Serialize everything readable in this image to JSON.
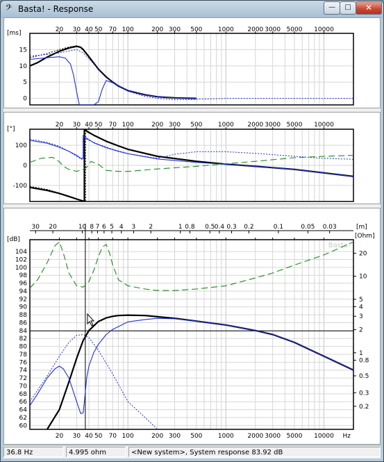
{
  "window": {
    "title": "Basta! - Response",
    "app_icon": "bass-clef-icon",
    "min_glyph": "—",
    "max_glyph": "□",
    "close_glyph": "✕"
  },
  "status": {
    "frequency": "36.8 Hz",
    "impedance": "4.995 ohm",
    "message": "<New system>, System response 83.92 dB"
  },
  "colors": {
    "primary": "#000000",
    "blue": "#1f2fd0",
    "green": "#1a8a1a",
    "grid": "#d6d6d6"
  },
  "freq_ticks": [
    "20",
    "30",
    "40",
    "50",
    "70",
    "100",
    "200",
    "300",
    "500",
    "1000",
    "2000",
    "3000",
    "5000",
    "10000"
  ],
  "chart_data": [
    {
      "type": "line",
      "panel": "group delay",
      "ylabel": "[ms]",
      "x_scale": "log",
      "xlim": [
        10,
        20000
      ],
      "ylim": [
        -2,
        20
      ],
      "yticks": [
        "15",
        "10",
        "5",
        "0"
      ],
      "series": [
        {
          "style": "solid-black",
          "x": [
            10,
            12,
            15,
            20,
            25,
            30,
            33,
            35,
            38,
            42,
            50,
            60,
            70,
            80,
            100,
            150,
            200,
            300,
            500
          ],
          "y": [
            10,
            11,
            12.7,
            14.5,
            15.5,
            16,
            15.7,
            15,
            13.7,
            12,
            9,
            6.6,
            5,
            3.8,
            2.4,
            1.1,
            0.5,
            0.15,
            0
          ]
        },
        {
          "style": "dotted-black",
          "x": [
            10,
            15,
            20,
            25,
            30,
            33,
            35,
            38,
            42,
            50,
            60,
            70,
            80,
            100,
            150,
            200,
            300,
            500
          ],
          "y": [
            12.5,
            13.8,
            15,
            15.8,
            16.2,
            15.8,
            15.2,
            13.8,
            12,
            9,
            6.6,
            5,
            3.8,
            2.4,
            1.1,
            0.5,
            0.15,
            0
          ]
        },
        {
          "style": "solid-blue",
          "x": [
            10,
            15,
            20,
            23,
            26,
            28,
            30,
            32,
            34,
            35,
            40,
            45,
            50,
            55,
            60,
            70,
            80,
            100,
            150,
            200,
            300,
            500
          ],
          "y": [
            12,
            12.5,
            12.8,
            12.4,
            10.5,
            7,
            2,
            -2,
            -2,
            -2,
            -2,
            -2,
            -1,
            3,
            5.5,
            4.8,
            3.9,
            2.5,
            1.1,
            0.5,
            0.15,
            0
          ]
        },
        {
          "style": "dotted-blue",
          "x": [
            10,
            15,
            20,
            25,
            30,
            35,
            40,
            50,
            70,
            100,
            150,
            200,
            300,
            500,
            1000,
            20000
          ],
          "y": [
            13,
            13.5,
            14,
            14.6,
            15,
            14,
            12.2,
            9,
            5,
            2.2,
            0.6,
            0,
            -0.4,
            -0.3,
            0,
            0
          ]
        }
      ]
    },
    {
      "type": "line",
      "panel": "phase",
      "ylabel": "[°]",
      "x_scale": "log",
      "xlim": [
        10,
        20000
      ],
      "ylim": [
        -180,
        180
      ],
      "yticks": [
        "100",
        "0",
        "-100"
      ],
      "series": [
        {
          "style": "solid-black",
          "x": [
            10,
            15,
            20,
            25,
            30,
            35,
            36,
            36.01,
            38,
            45,
            60,
            80,
            100,
            200,
            500,
            1000,
            2000,
            5000,
            20000
          ],
          "y": [
            -110,
            -125,
            -140,
            -155,
            -168,
            -178,
            -180,
            180,
            170,
            150,
            120,
            97,
            80,
            45,
            20,
            6,
            -5,
            -20,
            -55
          ]
        },
        {
          "style": "dotted-black",
          "x": [
            10,
            15,
            20,
            25,
            30,
            35,
            37,
            37.01,
            40,
            45,
            60,
            80,
            100,
            200,
            500,
            1000,
            2000,
            5000,
            20000
          ],
          "y": [
            -105,
            -120,
            -138,
            -153,
            -167,
            -177,
            -180,
            180,
            167,
            150,
            120,
            97,
            80,
            45,
            20,
            6,
            -5,
            -20,
            -55
          ]
        },
        {
          "style": "solid-blue",
          "x": [
            10,
            15,
            20,
            25,
            30,
            33,
            35,
            35.01,
            38,
            45,
            60,
            80,
            100,
            200,
            500,
            1000,
            2000,
            5000,
            20000
          ],
          "y": [
            125,
            110,
            90,
            70,
            50,
            35,
            35,
            150,
            135,
            112,
            88,
            70,
            58,
            32,
            15,
            5,
            -5,
            -20,
            -55
          ]
        },
        {
          "style": "dotted-blue",
          "x": [
            10,
            15,
            20,
            25,
            30,
            34,
            35,
            35.01,
            40,
            50,
            70,
            100,
            200,
            300,
            500,
            1000,
            2000,
            5000,
            10000,
            20000
          ],
          "y": [
            130,
            115,
            95,
            70,
            45,
            30,
            30,
            140,
            125,
            105,
            80,
            58,
            35,
            55,
            68,
            68,
            60,
            45,
            35,
            30
          ]
        },
        {
          "style": "dashed-green",
          "x": [
            10,
            13,
            17,
            20,
            22,
            25,
            30,
            35,
            38,
            42,
            50,
            60,
            80,
            100,
            200,
            500,
            1000,
            2000,
            5000,
            10000,
            20000
          ],
          "y": [
            15,
            35,
            40,
            18,
            -5,
            -20,
            -30,
            -20,
            -10,
            20,
            5,
            -25,
            -30,
            -30,
            -18,
            -5,
            8,
            20,
            38,
            45,
            50
          ]
        }
      ]
    },
    {
      "type": "line",
      "panel": "frequency response and impedance",
      "ylabel": "[dB]",
      "y2label": "[Ohm]",
      "top_axis_label": "[m]",
      "x_scale": "log",
      "xlim": [
        10,
        20000
      ],
      "ylim": [
        59,
        107
      ],
      "yticks": [
        "104",
        "102",
        "100",
        "98",
        "96",
        "94",
        "92",
        "90",
        "88",
        "86",
        "84",
        "82",
        "80",
        "78",
        "76",
        "74",
        "72",
        "70",
        "68",
        "66",
        "64",
        "62",
        "60"
      ],
      "y2ticks": [
        "20",
        "10",
        "5",
        "4",
        "3",
        "2",
        "1",
        "0.8",
        "0.5",
        "0.3",
        "0.2"
      ],
      "y2_scale": "log",
      "y2lim": [
        0.1,
        30
      ],
      "top_ticks": [
        "30",
        "20",
        "10",
        "8",
        "7",
        "6",
        "5",
        "4",
        "3",
        "2",
        "1",
        "0.8",
        "0.5",
        "0.4",
        "0.3",
        "0.2",
        "0.1",
        "0.05",
        "0.03"
      ],
      "x_unit": "Hz",
      "cursor": {
        "frequency": 36.8,
        "level": 83.92
      },
      "watermark": "Basta!",
      "series": [
        {
          "style": "solid-black",
          "axis": "dB",
          "x": [
            15,
            20,
            25,
            30,
            35,
            40,
            50,
            60,
            70,
            80,
            100,
            150,
            200,
            300,
            500,
            1000,
            1500,
            2000,
            3000,
            5000,
            10000,
            20000
          ],
          "y": [
            59,
            64,
            71,
            77,
            81.5,
            84,
            86.3,
            87.2,
            87.6,
            87.8,
            87.9,
            87.8,
            87.5,
            87.1,
            86.4,
            85.4,
            84.6,
            84,
            83,
            81,
            77.5,
            74
          ]
        },
        {
          "style": "solid-blue",
          "axis": "dB",
          "x": [
            10,
            12,
            15,
            18,
            20,
            22,
            25,
            30,
            33,
            35,
            36,
            37,
            38,
            40,
            45,
            50,
            60,
            70,
            80,
            100,
            150,
            200,
            300,
            500,
            1000,
            2000,
            3000,
            5000,
            10000,
            20000
          ],
          "y": [
            65,
            68,
            72,
            74.3,
            75,
            74.3,
            72,
            66,
            63,
            63.2,
            66,
            69,
            72,
            75,
            78.5,
            80.5,
            83,
            84.3,
            85,
            86.2,
            86.8,
            87.1,
            87,
            86.4,
            85.4,
            84,
            83,
            81,
            77.5,
            74
          ]
        },
        {
          "style": "dotted-blue",
          "axis": "dB",
          "x": [
            10,
            15,
            20,
            25,
            30,
            35,
            40,
            50,
            70,
            100,
            150,
            200
          ],
          "y": [
            66,
            72.5,
            77.5,
            81,
            82.8,
            83,
            82.2,
            79,
            73,
            66,
            62,
            59
          ]
        },
        {
          "style": "dashed-green",
          "axis": "Ohm",
          "x": [
            10,
            12,
            15,
            18,
            20,
            22,
            25,
            30,
            35,
            40,
            45,
            50,
            55,
            60,
            65,
            70,
            80,
            100,
            150,
            200,
            300,
            500,
            1000,
            2000,
            3000,
            5000,
            10000,
            20000
          ],
          "y": [
            7,
            9,
            15,
            25,
            28,
            20,
            11,
            7.5,
            7.2,
            8.5,
            12,
            18,
            24,
            26,
            20,
            14,
            9,
            7.5,
            6.8,
            6.5,
            6.5,
            6.8,
            7.5,
            9.5,
            11,
            14,
            19,
            28
          ]
        }
      ]
    }
  ]
}
